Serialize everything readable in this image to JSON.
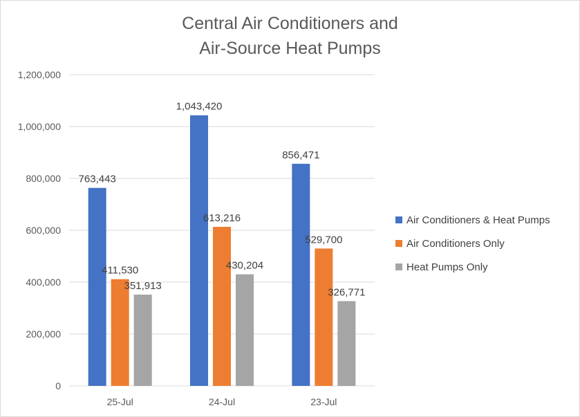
{
  "chart_data": {
    "type": "bar",
    "title": [
      "Central Air Conditioners and",
      "Air-Source Heat Pumps"
    ],
    "xlabel": "",
    "ylabel": "",
    "categories": [
      "25-Jul",
      "24-Jul",
      "23-Jul"
    ],
    "series": [
      {
        "name": "Air Conditioners & Heat Pumps",
        "color": "#4472c4",
        "values": [
          763443,
          1043420,
          856471
        ]
      },
      {
        "name": "Air Conditioners Only",
        "color": "#ed7d31",
        "values": [
          411530,
          613216,
          529700
        ]
      },
      {
        "name": "Heat Pumps Only",
        "color": "#a5a5a5",
        "values": [
          351913,
          430204,
          326771
        ]
      }
    ],
    "ylim": [
      0,
      1200000
    ],
    "yticks": [
      0,
      200000,
      400000,
      600000,
      800000,
      1000000,
      1200000
    ],
    "ytick_labels": [
      "0",
      "200,000",
      "400,000",
      "600,000",
      "800,000",
      "1,000,000",
      "1,200,000"
    ],
    "data_labels": [
      [
        "763,443",
        "1,043,420",
        "856,471"
      ],
      [
        "411,530",
        "613,216",
        "529,700"
      ],
      [
        "351,913",
        "430,204",
        "326,771"
      ]
    ],
    "grid": true,
    "legend_position": "right"
  }
}
